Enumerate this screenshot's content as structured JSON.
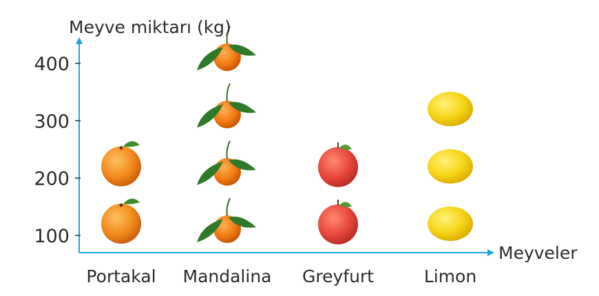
{
  "chart_data": {
    "type": "pictograph",
    "ylabel": "Meyve miktarı (kg)",
    "xlabel": "Meyveler",
    "yticks": [
      100,
      200,
      300,
      400
    ],
    "ylim": [
      0,
      400
    ],
    "unit_per_icon": 100,
    "categories": [
      "Portakal",
      "Mandalina",
      "Greyfurt",
      "Limon"
    ],
    "values": [
      200,
      400,
      200,
      300
    ],
    "icons": [
      "orange-icon",
      "mandarin-icon",
      "grapefruit-icon",
      "lemon-icon"
    ],
    "axis_color": "#1aa6e0",
    "fruit_colors": [
      "#f18a1c",
      "#f07a12",
      "#e8463c",
      "#f5d414"
    ]
  }
}
